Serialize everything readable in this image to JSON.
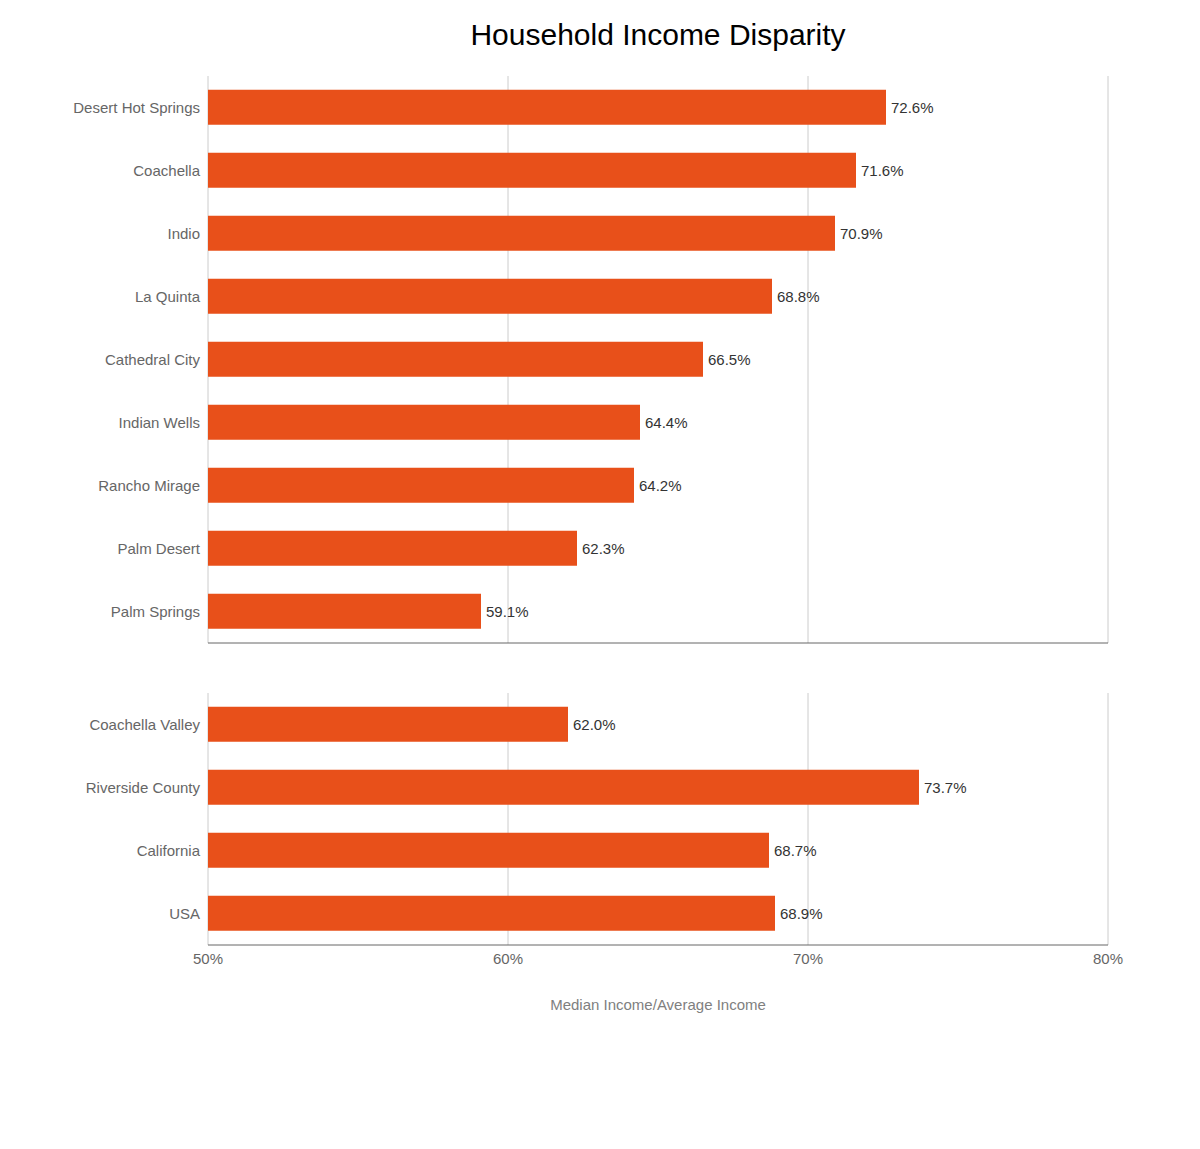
{
  "chart_data": [
    {
      "type": "bar",
      "title": "Household Income Disparity",
      "orientation": "horizontal",
      "categories": [
        "Desert Hot Springs",
        "Coachella",
        "Indio",
        "La Quinta",
        "Cathedral City",
        "Indian Wells",
        "Rancho Mirage",
        "Palm Desert",
        "Palm Springs"
      ],
      "values": [
        72.6,
        71.6,
        70.9,
        68.8,
        66.5,
        64.4,
        64.2,
        62.3,
        59.1
      ],
      "value_labels": [
        "72.6%",
        "71.6%",
        "70.9%",
        "68.8%",
        "66.5%",
        "64.4%",
        "64.2%",
        "62.3%",
        "59.1%"
      ],
      "data_labels": true,
      "color": "#E8501A",
      "xlim": [
        50,
        80
      ],
      "xticks": [
        50,
        60,
        70,
        80
      ],
      "grid": true,
      "tick_labels": "y"
    },
    {
      "type": "bar",
      "orientation": "horizontal",
      "xlabel": "Median Income/Average Income",
      "categories": [
        "Coachella Valley",
        "Riverside County",
        "California",
        "USA"
      ],
      "values": [
        62.0,
        73.7,
        68.7,
        68.9
      ],
      "value_labels": [
        "62.0%",
        "73.7%",
        "68.7%",
        "68.9%"
      ],
      "data_labels": true,
      "color": "#E8501A",
      "xlim": [
        50,
        80
      ],
      "xticks": [
        {
          "value": 50,
          "label": "50%"
        },
        {
          "value": 60,
          "label": "60%"
        },
        {
          "value": 70,
          "label": "70%"
        },
        {
          "value": 80,
          "label": "80%"
        }
      ],
      "grid": true
    }
  ]
}
